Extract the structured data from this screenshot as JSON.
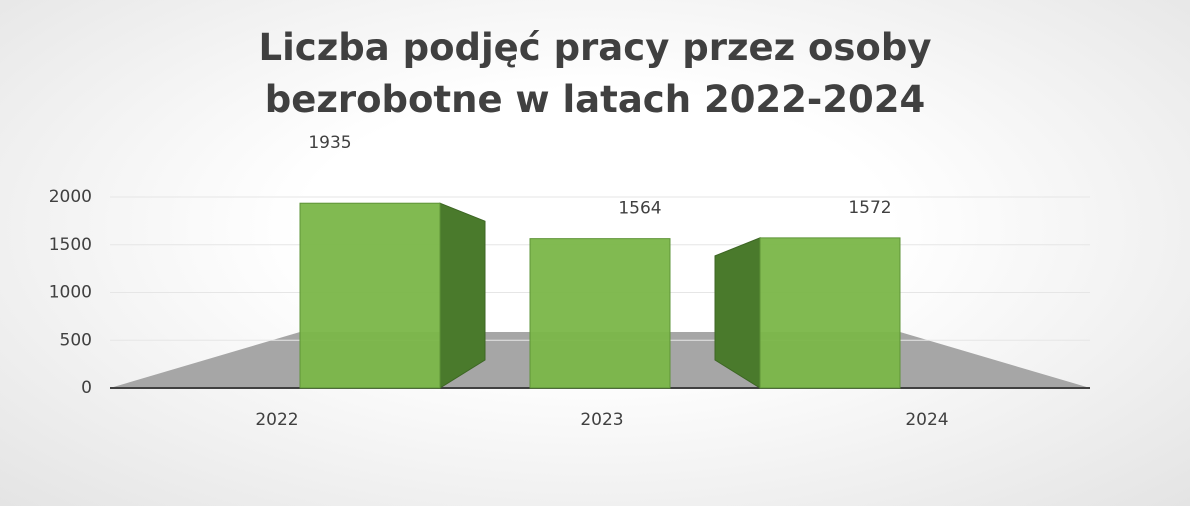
{
  "chart_data": {
    "type": "bar3d",
    "title": "Liczba podjęć pracy przez osoby bezrobotne w latach 2022-2024",
    "categories": [
      "2022",
      "2023",
      "2024"
    ],
    "values": [
      1935,
      1564,
      1572
    ],
    "color": "#7ab648",
    "ylim": [
      0,
      2000
    ],
    "yticks": [
      0,
      500,
      1000,
      1500,
      2000
    ],
    "grid": true
  }
}
